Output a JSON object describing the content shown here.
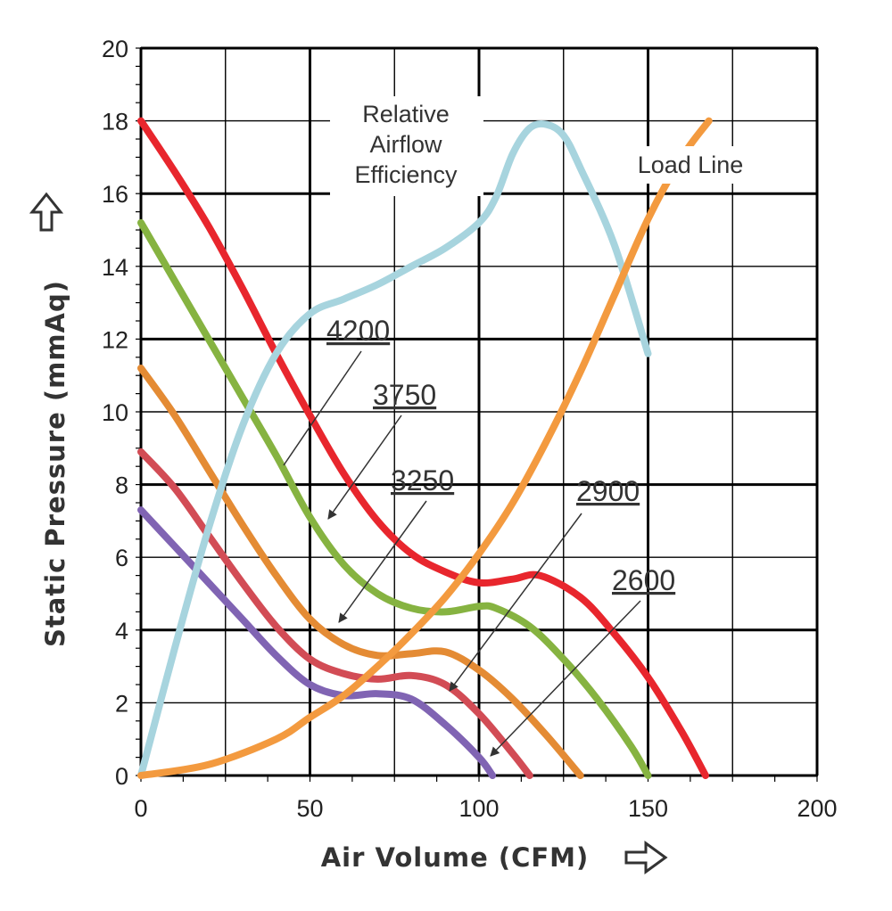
{
  "chart_data": {
    "type": "line",
    "xlabel": "Air Volume (CFM)",
    "ylabel": "Static Pressure (mmAq)",
    "xlim": [
      0,
      200
    ],
    "ylim": [
      0,
      20
    ],
    "xticks": [
      0,
      50,
      100,
      150,
      200
    ],
    "yticks": [
      0,
      2,
      4,
      6,
      8,
      10,
      12,
      14,
      16,
      18,
      20
    ],
    "grid": true,
    "series": [
      {
        "name": "4200",
        "color": "#e8262d",
        "x": [
          0,
          10,
          20,
          30,
          40,
          50,
          60,
          70,
          80,
          90,
          100,
          110,
          118,
          130,
          140,
          150,
          160,
          167
        ],
        "y": [
          18,
          16.6,
          15.1,
          13.4,
          11.6,
          9.9,
          8.3,
          7,
          6.1,
          5.6,
          5.3,
          5.4,
          5.5,
          4.9,
          3.9,
          2.7,
          1.2,
          0
        ]
      },
      {
        "name": "3750",
        "color": "#86b341",
        "x": [
          0,
          10,
          20,
          30,
          40,
          50,
          60,
          70,
          80,
          90,
          100,
          105,
          115,
          125,
          135,
          145,
          150
        ],
        "y": [
          15.2,
          13.6,
          12,
          10.4,
          8.8,
          7.1,
          5.8,
          5,
          4.6,
          4.5,
          4.65,
          4.6,
          4.1,
          3.2,
          2.1,
          0.8,
          0
        ]
      },
      {
        "name": "3250",
        "color": "#e48b34",
        "x": [
          0,
          10,
          20,
          30,
          40,
          50,
          60,
          70,
          80,
          90,
          100,
          110,
          120,
          130
        ],
        "y": [
          11.2,
          9.9,
          8.4,
          6.9,
          5.5,
          4.3,
          3.6,
          3.3,
          3.35,
          3.4,
          2.9,
          2.1,
          1.1,
          0
        ]
      },
      {
        "name": "2900",
        "color": "#d24c55",
        "x": [
          0,
          10,
          20,
          30,
          40,
          50,
          60,
          70,
          80,
          90,
          100,
          110,
          115
        ],
        "y": [
          8.9,
          7.9,
          6.6,
          5.3,
          4.1,
          3.2,
          2.8,
          2.65,
          2.75,
          2.5,
          1.7,
          0.6,
          0
        ]
      },
      {
        "name": "2600",
        "color": "#8064b3",
        "x": [
          0,
          10,
          20,
          30,
          40,
          50,
          60,
          70,
          80,
          90,
          100,
          104
        ],
        "y": [
          7.3,
          6.3,
          5.3,
          4.3,
          3.3,
          2.5,
          2.2,
          2.25,
          2.1,
          1.4,
          0.5,
          0
        ]
      },
      {
        "name": "Relative Airflow Efficiency",
        "color": "#a7d4de",
        "x": [
          0,
          10,
          20,
          30,
          40,
          50,
          60,
          70,
          80,
          90,
          100,
          105,
          110,
          115,
          120,
          125,
          130,
          140,
          150
        ],
        "y": [
          0,
          3.5,
          6.8,
          9.6,
          11.6,
          12.7,
          13.1,
          13.5,
          14,
          14.5,
          15.2,
          15.9,
          17.1,
          17.8,
          17.9,
          17.6,
          16.7,
          14.6,
          11.6
        ]
      },
      {
        "name": "Load Line",
        "color": "#f39a3f",
        "x": [
          0,
          20,
          40,
          50,
          60,
          70,
          80,
          90,
          100,
          110,
          120,
          130,
          140,
          150,
          160,
          168
        ],
        "y": [
          0,
          0.3,
          1,
          1.6,
          2.2,
          3,
          3.9,
          4.9,
          6.1,
          7.5,
          9.2,
          11.1,
          13.2,
          15.3,
          17,
          18
        ]
      }
    ]
  },
  "labels": {
    "efficiency": [
      "Relative",
      "Airflow",
      "Efficiency"
    ],
    "load_line": "Load Line",
    "rpm": [
      "4200",
      "3750",
      "3250",
      "2900",
      "2600"
    ]
  }
}
